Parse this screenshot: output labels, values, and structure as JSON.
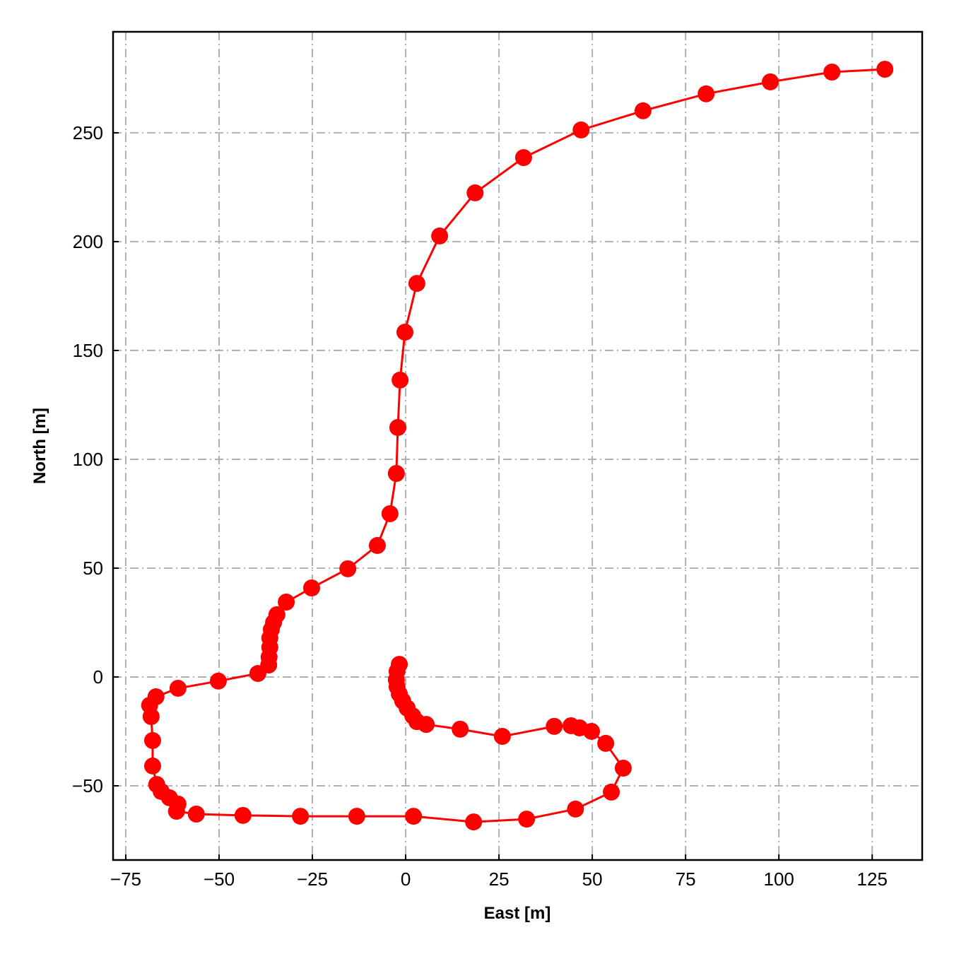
{
  "chart_data": {
    "type": "line",
    "xlabel": "East [m]",
    "ylabel": "North [m]",
    "marker": "circle",
    "grid": true,
    "x": [
      -1.7,
      -2.3,
      -2.5,
      -2.3,
      -1.7,
      -0.8,
      0.4,
      1.9,
      3.0,
      5.5,
      14.6,
      25.9,
      39.8,
      44.3,
      46.6,
      49.8,
      53.6,
      58.3,
      55.1,
      45.5,
      32.4,
      18.2,
      2.1,
      -13.1,
      -28.2,
      -43.6,
      -56.1,
      -61.4,
      -61.0,
      -63.3,
      -65.5,
      -66.7,
      -67.8,
      -67.8,
      -68.2,
      -68.6,
      -66.9,
      -61.0,
      -50.2,
      -39.6,
      -36.7,
      -36.6,
      -36.4,
      -36.4,
      -36.0,
      -35.4,
      -34.5,
      -32.0,
      -25.2,
      -15.5,
      -7.6,
      -4.2,
      -2.5,
      -2.1,
      -1.5,
      -0.2,
      3.0,
      9.1,
      18.6,
      31.6,
      47.0,
      63.6,
      80.5,
      97.7,
      114.2,
      128.4
    ],
    "series": [
      {
        "color": "#ff0000",
        "values": [
          5.8,
          2.6,
          -1.3,
          -4.5,
          -7.8,
          -11,
          -14.3,
          -17.9,
          -20.5,
          -21.8,
          -24.0,
          -27.3,
          -22.7,
          -22.4,
          -23.4,
          -25.0,
          -30.5,
          -41.9,
          -52.9,
          -60.7,
          -65.3,
          -66.6,
          -64.0,
          -64.0,
          -64.0,
          -63.6,
          -63.0,
          -61.7,
          -58.4,
          -55.5,
          -52.6,
          -49.4,
          -40.9,
          -29.2,
          -18.2,
          -13.0,
          -9.1,
          -5.2,
          -1.9,
          1.6,
          5.5,
          9.1,
          13.6,
          17.9,
          21.8,
          25.0,
          28.6,
          34.4,
          40.9,
          49.7,
          60.4,
          75.0,
          93.5,
          114.6,
          136.4,
          158.4,
          180.8,
          202.6,
          222.4,
          238.6,
          251.3,
          260.1,
          267.9,
          273.4,
          277.9,
          279.2
        ]
      }
    ],
    "xlim": [
      -78.4,
      138.4
    ],
    "ylim": [
      -84.1,
      296.4
    ],
    "xticks": [
      {
        "value": -75,
        "label": "−75"
      },
      {
        "value": -50,
        "label": "−50"
      },
      {
        "value": -25,
        "label": "−25"
      },
      0,
      25,
      50,
      75,
      100,
      125
    ],
    "yticks": [
      {
        "value": -50,
        "label": "−50"
      },
      0,
      50,
      100,
      150,
      200,
      250
    ]
  }
}
